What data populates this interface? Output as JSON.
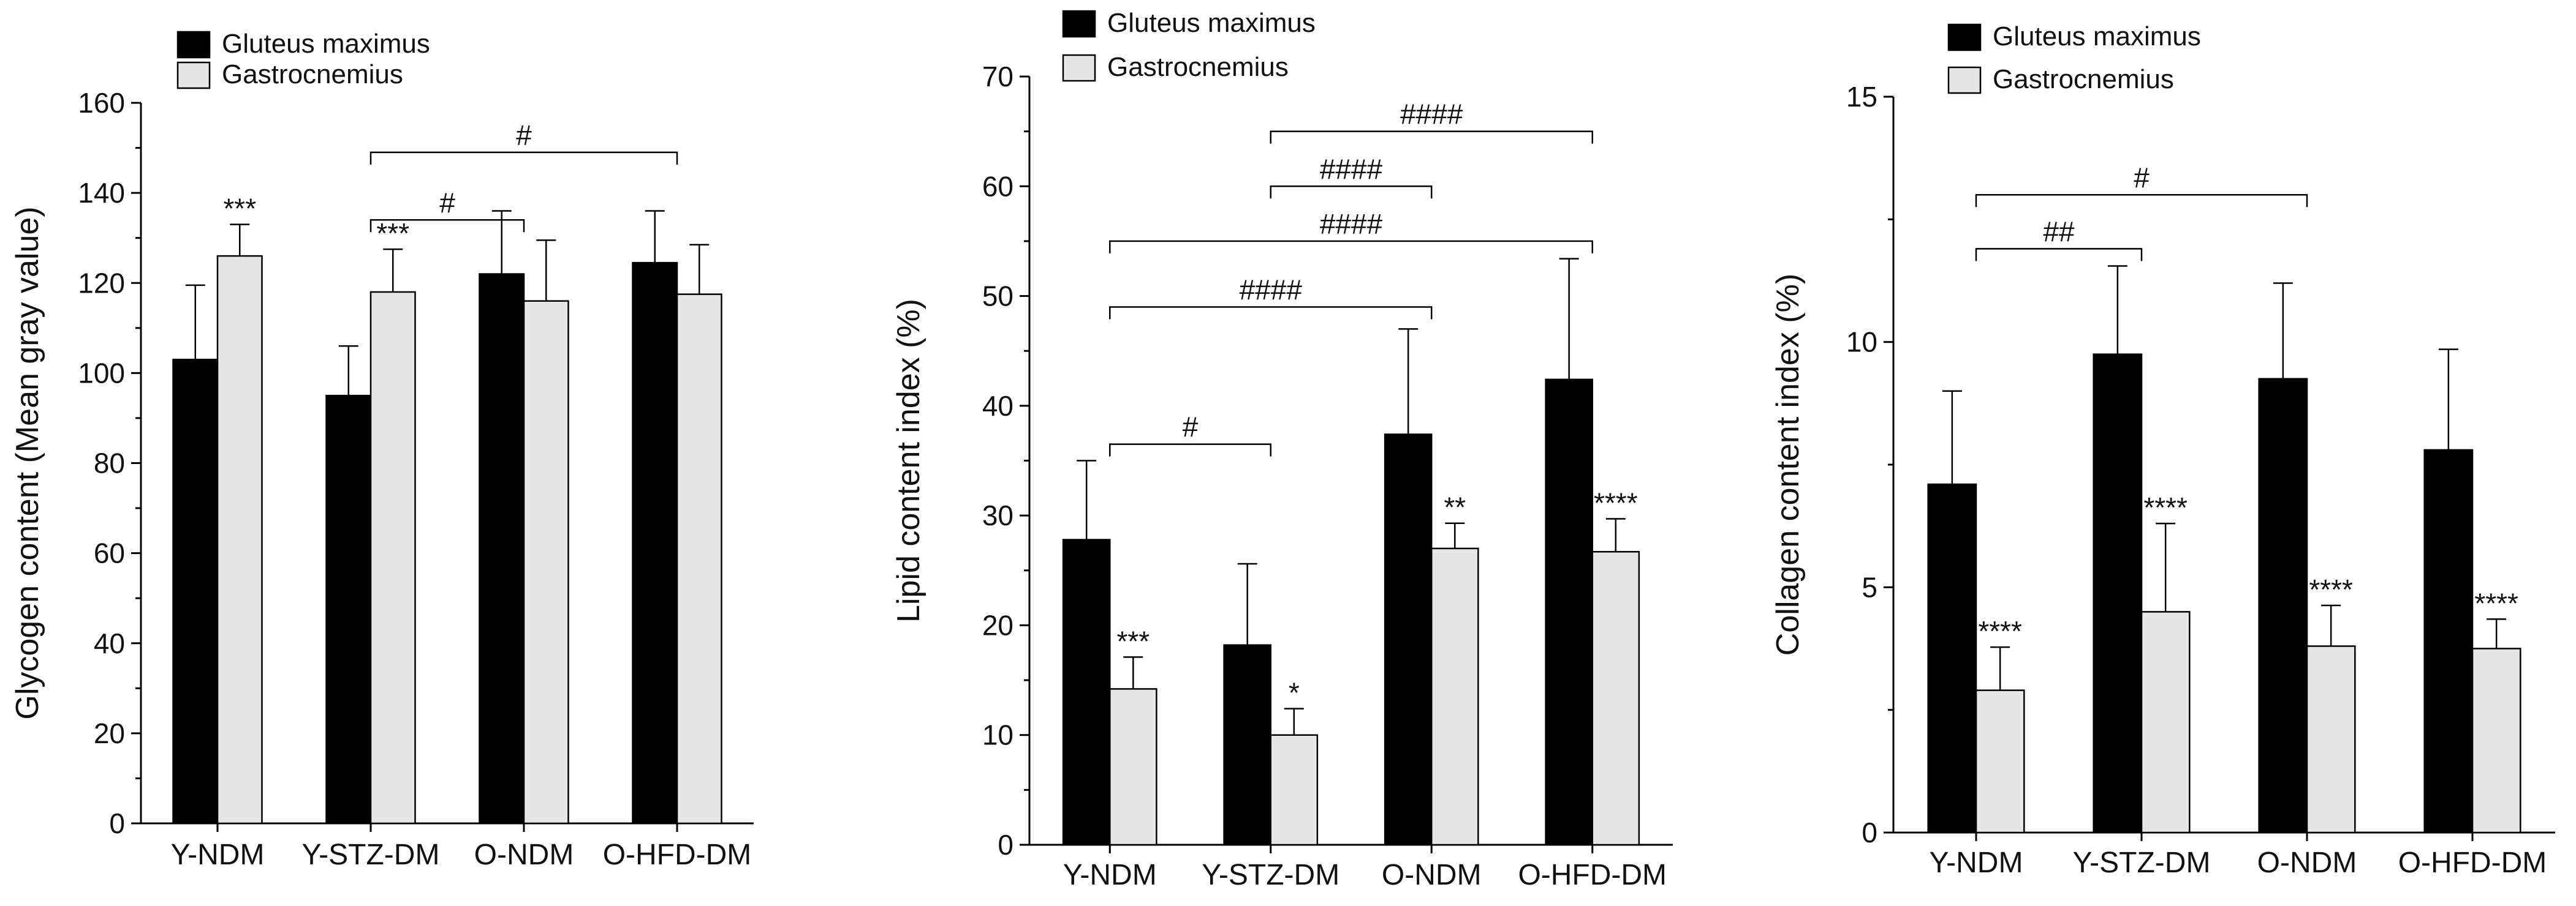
{
  "colors": {
    "gluteus": "#000000",
    "gastrocnemius": "#e6e6e6"
  },
  "chart_data": [
    {
      "type": "bar",
      "ylabel": "Glycogen content (Mean gray value)",
      "ylim": [
        0,
        160
      ],
      "yticks": [
        0,
        20,
        40,
        60,
        80,
        100,
        120,
        140,
        160
      ],
      "categories": [
        "Y-NDM",
        "Y-STZ-DM",
        "O-NDM",
        "O-HFD-DM"
      ],
      "legend": [
        "Gluteus maximus",
        "Gastrocnemius"
      ],
      "series": [
        {
          "name": "Gluteus maximus",
          "values": [
            103,
            95,
            122,
            124.5
          ],
          "errors": [
            16.5,
            11,
            14,
            11.5
          ],
          "stars": [
            "",
            "",
            "",
            ""
          ]
        },
        {
          "name": "Gastrocnemius",
          "values": [
            126,
            118,
            116,
            117.5
          ],
          "errors": [
            7,
            9.5,
            13.5,
            11
          ],
          "stars": [
            "***",
            "***",
            "",
            ""
          ]
        }
      ],
      "comparisons": [
        {
          "from": 1,
          "to": 2,
          "label": "#",
          "y": 134
        },
        {
          "from": 1,
          "to": 3,
          "label": "#",
          "y": 149
        }
      ]
    },
    {
      "type": "bar",
      "ylabel": "Lipid content index (%)",
      "ylim": [
        0,
        70
      ],
      "yticks": [
        0,
        10,
        20,
        30,
        40,
        50,
        60,
        70
      ],
      "categories": [
        "Y-NDM",
        "Y-STZ-DM",
        "O-NDM",
        "O-HFD-DM"
      ],
      "legend": [
        "Gluteus maximus",
        "Gastrocnemius"
      ],
      "series": [
        {
          "name": "Gluteus maximus",
          "values": [
            27.8,
            18.2,
            37.4,
            42.4
          ],
          "errors": [
            7.2,
            7.4,
            9.6,
            11
          ],
          "stars": [
            "",
            "",
            "",
            ""
          ]
        },
        {
          "name": "Gastrocnemius",
          "values": [
            14.2,
            10,
            27,
            26.7
          ],
          "errors": [
            2.9,
            2.4,
            2.3,
            3
          ],
          "stars": [
            "***",
            "*",
            "**",
            "****"
          ]
        }
      ],
      "comparisons": [
        {
          "from": 0,
          "to": 1,
          "label": "#",
          "y": 36.5
        },
        {
          "from": 0,
          "to": 2,
          "label": "####",
          "y": 49
        },
        {
          "from": 0,
          "to": 3,
          "label": "####",
          "y": 55
        },
        {
          "from": 1,
          "to": 2,
          "label": "####",
          "y": 60
        },
        {
          "from": 1,
          "to": 3,
          "label": "####",
          "y": 65
        }
      ]
    },
    {
      "type": "bar",
      "ylabel": "Collagen content index (%)",
      "ylim": [
        0,
        15
      ],
      "yticks": [
        0,
        5,
        10,
        15
      ],
      "categories": [
        "Y-NDM",
        "Y-STZ-DM",
        "O-NDM",
        "O-HFD-DM"
      ],
      "legend": [
        "Gluteus maximus",
        "Gastrocnemius"
      ],
      "series": [
        {
          "name": "Gluteus maximus",
          "values": [
            7.1,
            9.75,
            9.25,
            7.8
          ],
          "errors": [
            1.9,
            1.8,
            1.95,
            2.05
          ],
          "stars": [
            "",
            "",
            "",
            ""
          ]
        },
        {
          "name": "Gastrocnemius",
          "values": [
            2.9,
            4.5,
            3.8,
            3.75
          ],
          "errors": [
            0.88,
            1.8,
            0.83,
            0.6
          ],
          "stars": [
            "****",
            "****",
            "****",
            "****"
          ]
        }
      ],
      "comparisons": [
        {
          "from": 0,
          "to": 1,
          "label": "##",
          "y": 11.9
        },
        {
          "from": 0,
          "to": 2,
          "label": "#",
          "y": 13
        }
      ]
    }
  ]
}
